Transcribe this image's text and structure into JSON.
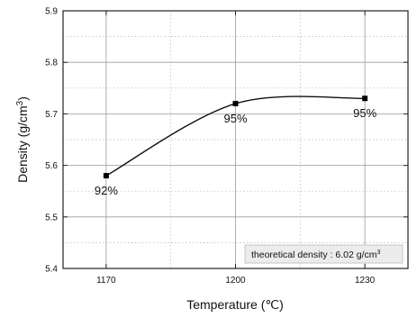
{
  "chart_data": {
    "type": "line",
    "xlabel": "Temperature (℃)",
    "ylabel_main": "Density (g/cm",
    "ylabel_sup": "3",
    "ylabel_close": ")",
    "x_ticks": [
      "1170",
      "1200",
      "1230"
    ],
    "y_ticks": [
      "5.4",
      "5.5",
      "5.6",
      "5.7",
      "5.8",
      "5.9"
    ],
    "xlim": [
      1160,
      1240
    ],
    "ylim": [
      5.4,
      5.9
    ],
    "grid": true,
    "series": [
      {
        "x": [
          1170,
          1200,
          1230
        ],
        "values": [
          5.58,
          5.72,
          5.73
        ],
        "point_labels": [
          "92%",
          "95%",
          "95%"
        ]
      }
    ],
    "annotation_main": "theoretical density : 6.02 g/cm",
    "annotation_sup": "3"
  }
}
